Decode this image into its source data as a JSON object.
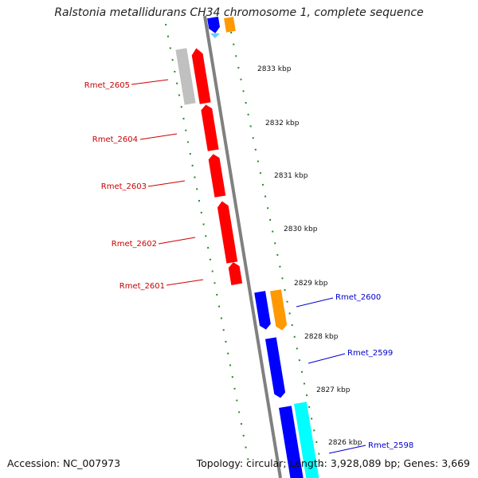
{
  "map": {
    "title": "Ralstonia metallidurans CH34 chromosome 1, complete sequence",
    "accession": "Accession: NC_007973",
    "summary": "Topology: circular; Length: 3,928,089 bp; Genes: 3,669"
  },
  "colors": {
    "backbone": "#808080",
    "ticks": "#228b22",
    "gene_red": "#ff0000",
    "gene_gray": "#c0c0c0",
    "gene_blue": "#0000ff",
    "gene_orange": "#ff9900",
    "gene_cyan": "#00ffff",
    "gene_lightblue": "#66ccff",
    "label_red": "#cc0000",
    "label_blue": "#0000cc"
  },
  "scale_labels": [
    "2833 kbp",
    "2832 kbp",
    "2831 kbp",
    "2830 kbp",
    "2829 kbp",
    "2828 kbp",
    "2827 kbp",
    "2826 kbp"
  ],
  "left_gene_labels": [
    "Rmet_2605",
    "Rmet_2604",
    "Rmet_2603",
    "Rmet_2602",
    "Rmet_2601"
  ],
  "right_gene_labels": [
    "Rmet_2600",
    "Rmet_2599",
    "Rmet_2598"
  ]
}
